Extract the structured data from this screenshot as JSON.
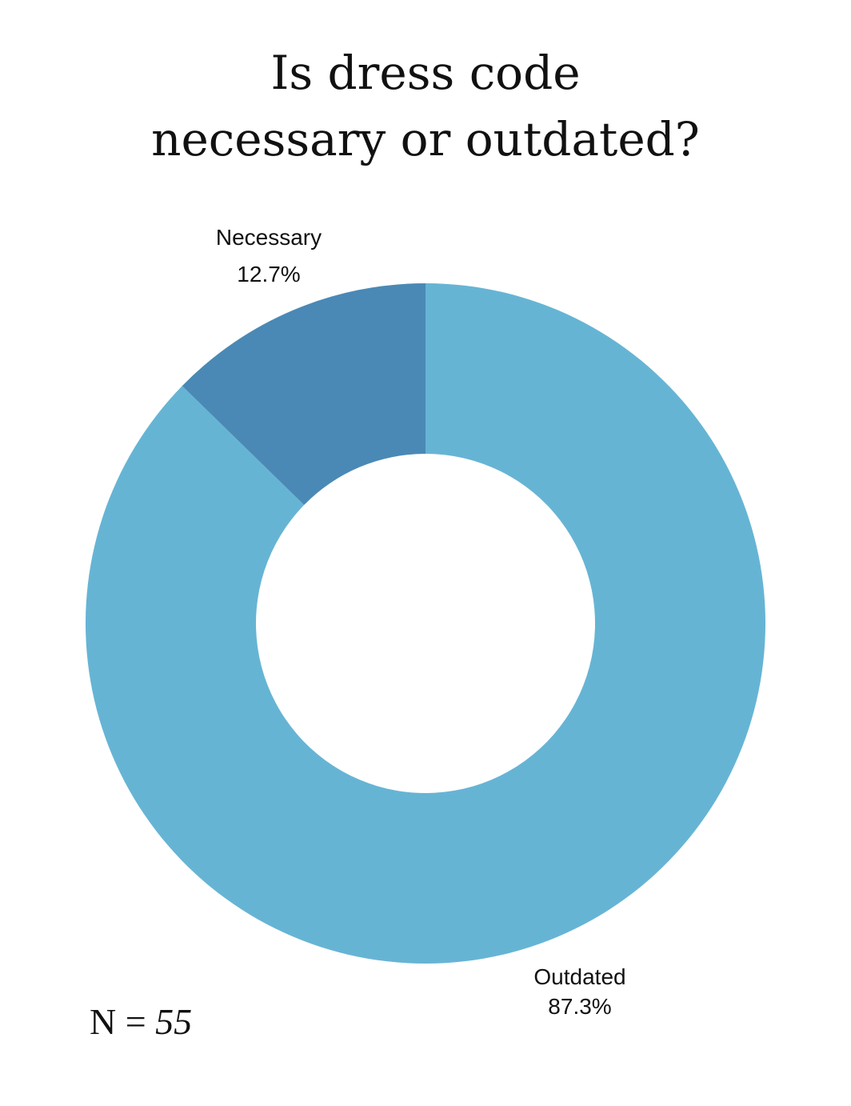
{
  "title_lines": [
    "Is dress code",
    "necessary or outdated?"
  ],
  "sample": {
    "prefix": "N = ",
    "value": "55"
  },
  "chart_data": {
    "type": "pie",
    "donut": true,
    "slices": [
      {
        "label": "Necessary",
        "value": 12.7,
        "display": "12.7%",
        "color": "#4a89b5"
      },
      {
        "label": "Outdated",
        "value": 87.3,
        "display": "87.3%",
        "color": "#66b4d4"
      }
    ],
    "title": "Is dress code necessary or outdated?",
    "legend": "none"
  }
}
